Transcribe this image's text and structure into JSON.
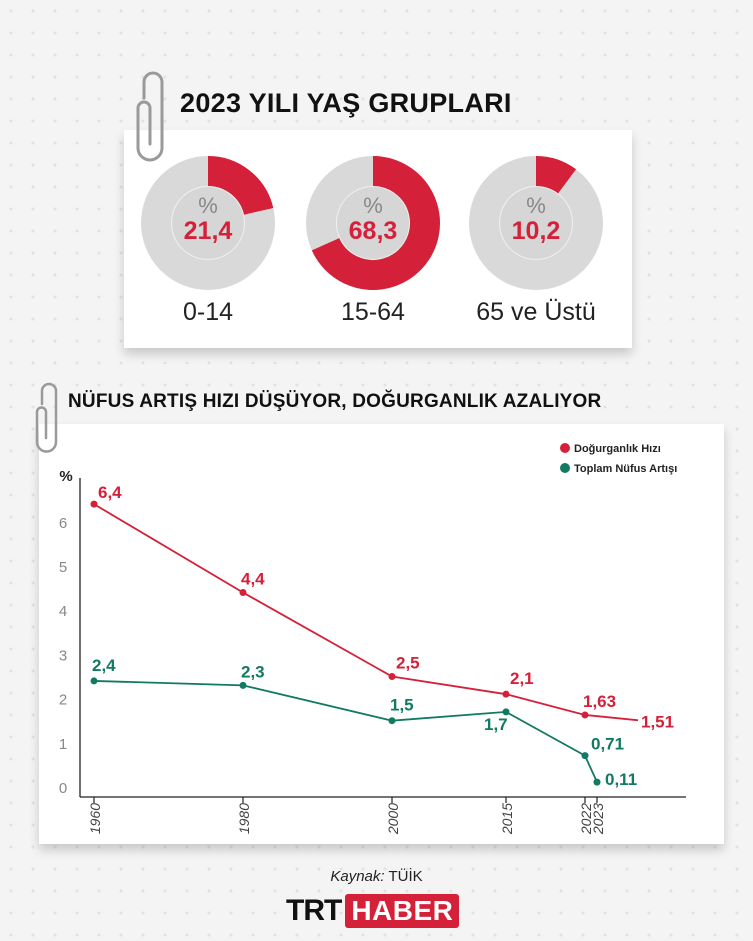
{
  "section1": {
    "title": "2023 YILI YAŞ GRUPLARI",
    "groups": [
      {
        "label": "0-14",
        "percent_symbol": "%",
        "value": "21,4",
        "fraction": 0.214
      },
      {
        "label": "15-64",
        "percent_symbol": "%",
        "value": "68,3",
        "fraction": 0.683
      },
      {
        "label": "65 ve Üstü",
        "percent_symbol": "%",
        "value": "10,2",
        "fraction": 0.102
      }
    ]
  },
  "section2": {
    "title": "NÜFUS ARTIŞ HIZI DÜŞÜYOR, DOĞURGANLIK AZALIYOR"
  },
  "colors": {
    "red": "#d42038",
    "green": "#117a62",
    "track": "#d9d9d9"
  },
  "chart_data": {
    "type": "line",
    "ylabel": "%",
    "ylim": [
      0,
      6.6
    ],
    "y_ticks": [
      "0",
      "1",
      "2",
      "3",
      "4",
      "5",
      "6"
    ],
    "x_ticks": [
      "1960",
      "1980",
      "2000",
      "2015",
      "2022",
      "2023"
    ],
    "legend_position": "top-right",
    "series": [
      {
        "name": "Doğurganlık Hızı",
        "color": "#d42038",
        "x": [
          1960,
          1980,
          2000,
          2015,
          2022,
          2023
        ],
        "values": [
          6.4,
          4.4,
          2.5,
          2.1,
          1.63,
          1.51
        ],
        "labels": [
          "6,4",
          "4,4",
          "2,5",
          "2,1",
          "1,63",
          "1,51"
        ]
      },
      {
        "name": "Toplam Nüfus Artışı",
        "color": "#117a62",
        "x": [
          1960,
          1980,
          2000,
          2015,
          2022,
          2023
        ],
        "values": [
          2.4,
          2.3,
          1.5,
          1.7,
          0.71,
          0.11
        ],
        "labels": [
          "2,4",
          "2,3",
          "1,5",
          "1,7",
          "0,71",
          "0,11"
        ]
      }
    ]
  },
  "footer": {
    "source_label": "Kaynak:",
    "source_value": "TÜİK",
    "logo_trt": "TRT",
    "logo_haber": "HABER"
  }
}
